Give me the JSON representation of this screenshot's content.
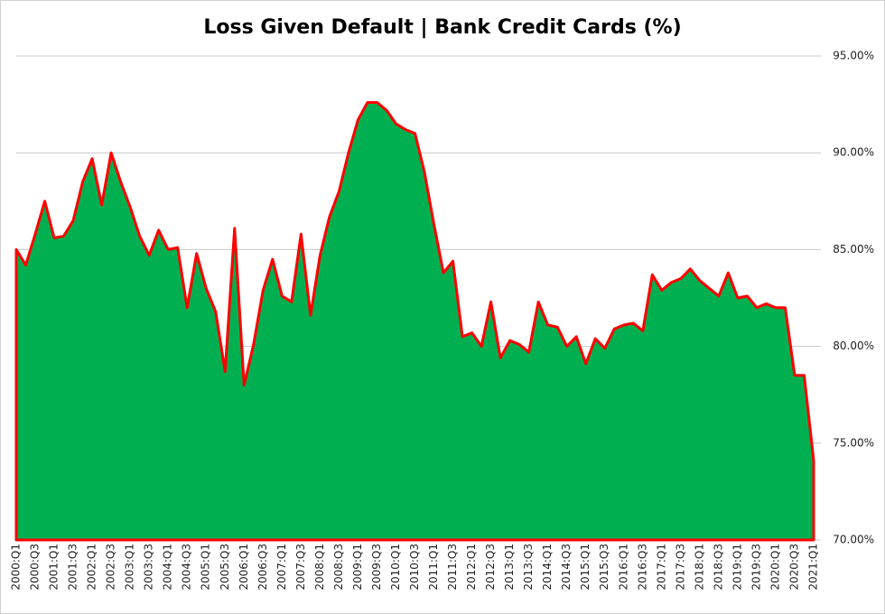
{
  "chart_data": {
    "type": "area",
    "title": "Loss Given Default | Bank Credit Cards (%)",
    "categories": [
      "2000:Q1",
      null,
      "2000:Q3",
      null,
      "2001:Q1",
      null,
      "2001:Q3",
      null,
      "2002:Q1",
      null,
      "2002:Q3",
      null,
      "2003:Q1",
      null,
      "2003:Q3",
      null,
      "2004:Q1",
      null,
      "2004:Q3",
      null,
      "2005:Q1",
      null,
      "2005:Q3",
      null,
      "2006:Q1",
      null,
      "2006:Q3",
      null,
      "2007:Q1",
      null,
      "2007:Q3",
      null,
      "2008:Q1",
      null,
      "2008:Q3",
      null,
      "2009:Q1",
      null,
      "2009:Q3",
      null,
      "2010:Q1",
      null,
      "2010:Q3",
      null,
      "2011:Q1",
      null,
      "2011:Q3",
      null,
      "2012:Q1",
      null,
      "2012:Q3",
      null,
      "2013:Q1",
      null,
      "2013:Q3",
      null,
      "2014:Q1",
      null,
      "2014:Q3",
      null,
      "2015:Q1",
      null,
      "2015:Q3",
      null,
      "2016:Q1",
      null,
      "2016:Q3",
      null,
      "2017:Q1",
      null,
      "2017:Q3",
      null,
      "2018:Q1",
      null,
      "2018:Q3",
      null,
      "2019:Q1",
      null,
      "2019:Q3",
      null,
      "2020:Q1",
      null,
      "2020:Q3",
      null,
      "2021:Q1"
    ],
    "values": [
      85.0,
      84.2,
      85.8,
      87.5,
      85.6,
      85.7,
      86.5,
      88.5,
      89.7,
      87.3,
      90.0,
      88.5,
      87.2,
      85.7,
      84.7,
      86.0,
      85.0,
      85.1,
      82.0,
      84.8,
      83.0,
      81.8,
      78.7,
      86.1,
      78.0,
      80.1,
      82.9,
      84.5,
      82.6,
      82.3,
      85.8,
      81.6,
      84.7,
      86.7,
      88.0,
      90.0,
      91.7,
      92.6,
      92.6,
      92.2,
      91.5,
      91.2,
      91.0,
      89.0,
      86.3,
      83.8,
      84.4,
      80.5,
      80.7,
      80.0,
      82.3,
      79.4,
      80.3,
      80.1,
      79.7,
      82.3,
      81.1,
      81.0,
      80.0,
      80.5,
      79.1,
      80.4,
      79.9,
      80.9,
      81.1,
      81.2,
      80.8,
      83.7,
      82.9,
      83.3,
      83.5,
      84.0,
      83.4,
      83.0,
      82.6,
      83.8,
      82.5,
      82.6,
      82.0,
      82.2,
      82.0,
      82.0,
      78.5,
      78.5,
      74.1
    ],
    "fill_color": "#00b050",
    "line_color": "#ff0000",
    "ylim": [
      70,
      95
    ],
    "yticks": [
      {
        "value": 70,
        "label": "70.00%"
      },
      {
        "value": 75,
        "label": "75.00%"
      },
      {
        "value": 80,
        "label": "80.00%"
      },
      {
        "value": 85,
        "label": "85.00%"
      },
      {
        "value": 90,
        "label": "90.00%"
      },
      {
        "value": 95,
        "label": "95.00%"
      }
    ],
    "grid": true,
    "y_axis_side": "right"
  }
}
